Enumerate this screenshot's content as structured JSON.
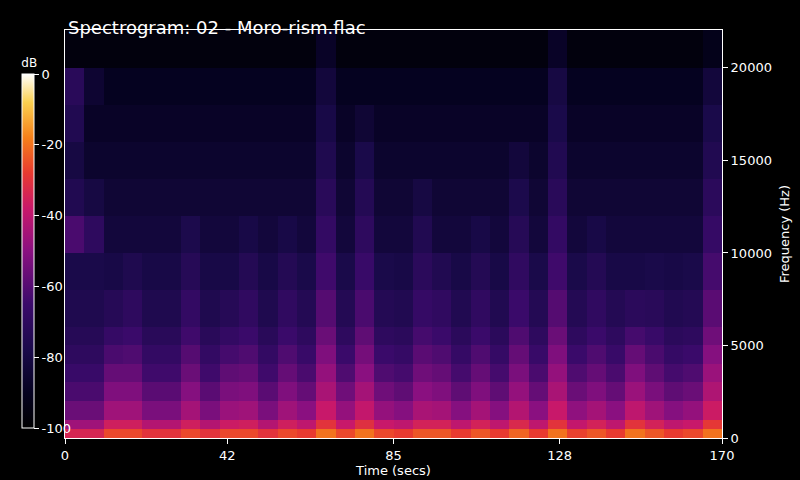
{
  "chart_data": {
    "type": "heatmap",
    "title": "Spectrogram: 02 - Moro-rism.flac",
    "x_label": "Time (secs)",
    "y_label": "Frequency (Hz)",
    "x": [
      0,
      5,
      10,
      15,
      20,
      25,
      30,
      35,
      40,
      45,
      50,
      55,
      60,
      65,
      70,
      75,
      80,
      85,
      90,
      95,
      100,
      105,
      110,
      115,
      120,
      125,
      130,
      135,
      140,
      145,
      150,
      155,
      160,
      165,
      170
    ],
    "y": [
      0,
      500,
      1000,
      2000,
      3000,
      4000,
      5000,
      6000,
      8000,
      10000,
      12000,
      14000,
      16000,
      18000,
      20000,
      22050
    ],
    "z": [
      [
        -34,
        -34,
        -26,
        -26,
        -30,
        -30,
        -26,
        -30,
        -26,
        -26,
        -30,
        -26,
        -28,
        -20,
        -26,
        -20,
        -26,
        -28,
        -24,
        -24,
        -28,
        -24,
        -28,
        -22,
        -28,
        -20,
        -27,
        -24,
        -28,
        -20,
        -24,
        -28,
        -26,
        -20
      ],
      [
        -46,
        -46,
        -36,
        -36,
        -42,
        -42,
        -36,
        -42,
        -37,
        -36,
        -42,
        -36,
        -40,
        -30,
        -38,
        -31,
        -38,
        -40,
        -35,
        -35,
        -40,
        -35,
        -40,
        -33,
        -40,
        -30,
        -39,
        -35,
        -40,
        -30,
        -35,
        -40,
        -38,
        -29
      ],
      [
        -56,
        -56,
        -46,
        -46,
        -53,
        -53,
        -45,
        -53,
        -47,
        -46,
        -53,
        -46,
        -50,
        -38,
        -48,
        -39,
        -48,
        -51,
        -44,
        -45,
        -51,
        -45,
        -51,
        -42,
        -50,
        -38,
        -49,
        -45,
        -50,
        -40,
        -46,
        -51,
        -48,
        -37
      ],
      [
        -62,
        -62,
        -52,
        -52,
        -59,
        -59,
        -51,
        -59,
        -53,
        -52,
        -59,
        -52,
        -57,
        -44,
        -55,
        -45,
        -55,
        -58,
        -50,
        -52,
        -58,
        -52,
        -58,
        -48,
        -57,
        -44,
        -56,
        -52,
        -57,
        -47,
        -53,
        -58,
        -56,
        -43
      ],
      [
        -66,
        -66,
        -57,
        -57,
        -64,
        -64,
        -56,
        -64,
        -58,
        -57,
        -64,
        -57,
        -62,
        -48,
        -61,
        -50,
        -61,
        -63,
        -55,
        -57,
        -63,
        -57,
        -63,
        -53,
        -62,
        -48,
        -61,
        -57,
        -62,
        -52,
        -58,
        -63,
        -61,
        -47
      ],
      [
        -70,
        -70,
        -62,
        -61,
        -68,
        -68,
        -60,
        -68,
        -63,
        -61,
        -68,
        -61,
        -66,
        -52,
        -65,
        -54,
        -65,
        -67,
        -59,
        -61,
        -67,
        -61,
        -67,
        -57,
        -66,
        -52,
        -65,
        -61,
        -66,
        -57,
        -62,
        -67,
        -65,
        -51
      ],
      [
        -73,
        -73,
        -67,
        -65,
        -72,
        -72,
        -64,
        -72,
        -68,
        -65,
        -72,
        -65,
        -70,
        -56,
        -70,
        -58,
        -70,
        -71,
        -63,
        -65,
        -71,
        -65,
        -71,
        -61,
        -70,
        -56,
        -70,
        -65,
        -70,
        -63,
        -66,
        -71,
        -70,
        -55
      ],
      [
        -76,
        -76,
        -73,
        -70,
        -76,
        -76,
        -68,
        -76,
        -73,
        -69,
        -76,
        -69,
        -74,
        -60,
        -74,
        -62,
        -74,
        -75,
        -67,
        -69,
        -75,
        -69,
        -75,
        -65,
        -74,
        -60,
        -74,
        -69,
        -74,
        -71,
        -72,
        -75,
        -74,
        -59
      ],
      [
        -78,
        -78,
        -79,
        -76,
        -79,
        -79,
        -73,
        -79,
        -79,
        -74,
        -79,
        -74,
        -78,
        -64,
        -78,
        -66,
        -78,
        -79,
        -71,
        -75,
        -79,
        -74,
        -79,
        -69,
        -78,
        -64,
        -78,
        -74,
        -79,
        -79,
        -78,
        -79,
        -78,
        -63
      ],
      [
        -62,
        -70,
        -82,
        -82,
        -82,
        -82,
        -77,
        -82,
        -82,
        -79,
        -82,
        -79,
        -82,
        -68,
        -82,
        -70,
        -82,
        -82,
        -75,
        -82,
        -82,
        -79,
        -82,
        -73,
        -82,
        -68,
        -82,
        -79,
        -82,
        -82,
        -82,
        -82,
        -82,
        -67
      ],
      [
        -75,
        -80,
        -84,
        -84,
        -84,
        -84,
        -84,
        -84,
        -84,
        -84,
        -84,
        -84,
        -84,
        -72,
        -84,
        -74,
        -84,
        -84,
        -80,
        -84,
        -84,
        -84,
        -84,
        -77,
        -84,
        -72,
        -84,
        -84,
        -84,
        -84,
        -84,
        -84,
        -84,
        -71
      ],
      [
        -80,
        -86,
        -86,
        -86,
        -86,
        -86,
        -86,
        -86,
        -86,
        -86,
        -86,
        -86,
        -86,
        -76,
        -86,
        -78,
        -86,
        -86,
        -86,
        -86,
        -86,
        -86,
        -86,
        -82,
        -86,
        -75,
        -86,
        -86,
        -86,
        -86,
        -86,
        -86,
        -86,
        -75
      ],
      [
        -75,
        -88,
        -88,
        -88,
        -88,
        -88,
        -88,
        -88,
        -88,
        -88,
        -88,
        -88,
        -88,
        -79,
        -88,
        -84,
        -88,
        -88,
        -88,
        -88,
        -88,
        -88,
        -88,
        -88,
        -88,
        -78,
        -88,
        -88,
        -88,
        -88,
        -88,
        -88,
        -88,
        -78
      ],
      [
        -72,
        -85,
        -90,
        -90,
        -90,
        -90,
        -90,
        -90,
        -90,
        -90,
        -90,
        -90,
        -90,
        -82,
        -90,
        -90,
        -90,
        -90,
        -90,
        -90,
        -90,
        -90,
        -90,
        -90,
        -90,
        -80,
        -90,
        -90,
        -90,
        -90,
        -90,
        -90,
        -90,
        -82
      ],
      [
        -96,
        -96,
        -96,
        -96,
        -96,
        -96,
        -96,
        -96,
        -96,
        -96,
        -96,
        -96,
        -96,
        -88,
        -96,
        -96,
        -96,
        -96,
        -96,
        -96,
        -96,
        -96,
        -96,
        -96,
        -96,
        -88,
        -96,
        -96,
        -96,
        -96,
        -96,
        -96,
        -96,
        -92
      ]
    ],
    "xlim": [
      0,
      170
    ],
    "ylim": [
      0,
      22050
    ],
    "xticks": [
      0,
      42,
      85,
      128,
      170
    ],
    "yticks": [
      0,
      5000,
      10000,
      15000,
      20000
    ],
    "colorbar": {
      "title": "dB",
      "range": [
        -100,
        0
      ],
      "ticks": [
        0,
        -20,
        -40,
        -60,
        -80,
        -100
      ]
    },
    "grid": false
  }
}
